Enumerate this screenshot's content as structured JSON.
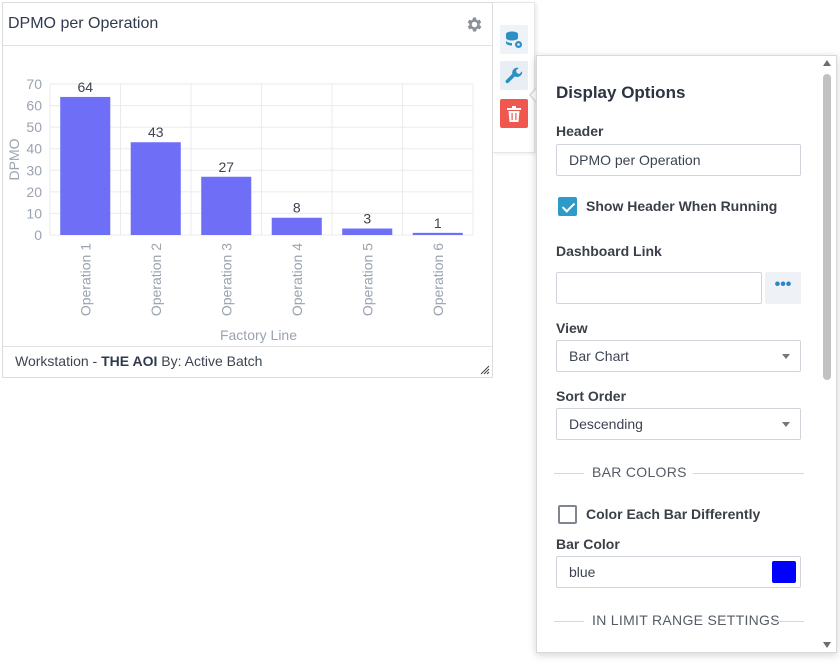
{
  "widget": {
    "title": "DPMO per Operation",
    "footer_prefix": "Workstation - ",
    "footer_station": "THE AOI",
    "footer_suffix": " By: Active Batch"
  },
  "chart_data": {
    "type": "bar",
    "categories": [
      "Operation 1",
      "Operation 2",
      "Operation 3",
      "Operation 4",
      "Operation 5",
      "Operation 6"
    ],
    "values": [
      64,
      43,
      27,
      8,
      3,
      1
    ],
    "xlabel": "Factory Line",
    "ylabel": "DPMO",
    "ylim": [
      0,
      70
    ],
    "yticks": [
      0,
      10,
      20,
      30,
      40,
      50,
      60,
      70
    ],
    "grid": true,
    "bar_color": "#6e6ef7"
  },
  "toolbar": {
    "data_icon": "database-gear-icon",
    "wrench_icon": "wrench-icon",
    "trash_icon": "trash-icon"
  },
  "panel": {
    "title": "Display Options",
    "header_label": "Header",
    "header_value": "DPMO per Operation",
    "show_header_label": "Show Header When Running",
    "show_header_checked": true,
    "dashboard_link_label": "Dashboard Link",
    "dashboard_link_value": "",
    "ellipsis": "•••",
    "view_label": "View",
    "view_value": "Bar Chart",
    "sort_label": "Sort Order",
    "sort_value": "Descending",
    "bar_colors_section": "BAR COLORS",
    "color_each_label": "Color Each Bar Differently",
    "color_each_checked": false,
    "bar_color_label": "Bar Color",
    "bar_color_value": "blue",
    "bar_color_swatch": "#0000ff",
    "limit_section": "IN LIMIT RANGE SETTINGS"
  }
}
